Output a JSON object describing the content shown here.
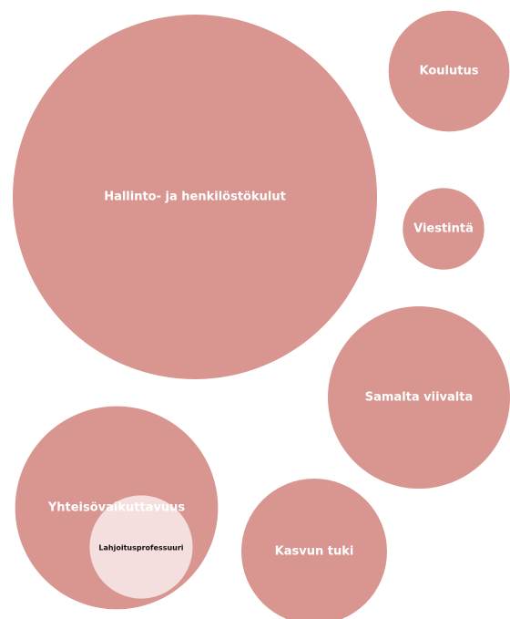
{
  "chart_data": {
    "type": "bubble",
    "categories": [
      "Hallinto- ja henkilöstökulut",
      "Koulutus",
      "Viestintä",
      "Samalta viivalta",
      "Yhteisövaikuttavuus",
      "Lahjoitusprofessuuri",
      "Kasvun tuki"
    ],
    "values": [
      100,
      11,
      5,
      25,
      31,
      8,
      16
    ],
    "colors": [
      "#d9958f",
      "#d9958f",
      "#d9958f",
      "#d9958f",
      "#d9958f",
      "#f4dede",
      "#d9958f"
    ]
  }
}
